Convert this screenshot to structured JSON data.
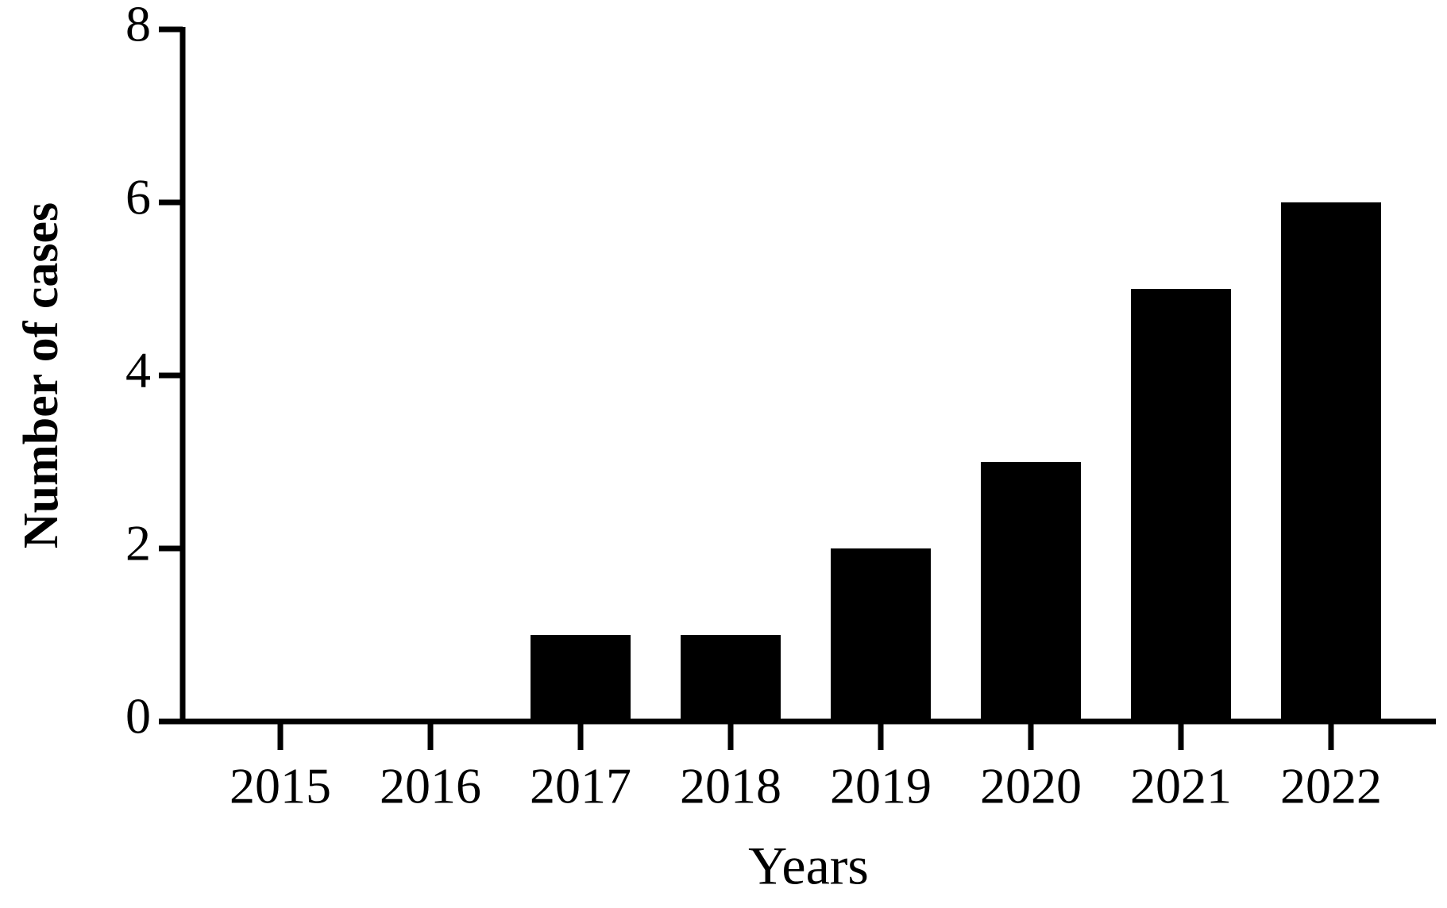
{
  "chart_data": {
    "type": "bar",
    "x_label": "Years",
    "y_label": "Number of cases",
    "categories": [
      "2015",
      "2016",
      "2017",
      "2018",
      "2019",
      "2020",
      "2021",
      "2022"
    ],
    "values": [
      0,
      0,
      1,
      1,
      2,
      3,
      5,
      6
    ],
    "color": "#000000",
    "ylim": [
      0,
      8
    ],
    "yticks": [
      0,
      2,
      4,
      6,
      8
    ],
    "grid": false
  }
}
